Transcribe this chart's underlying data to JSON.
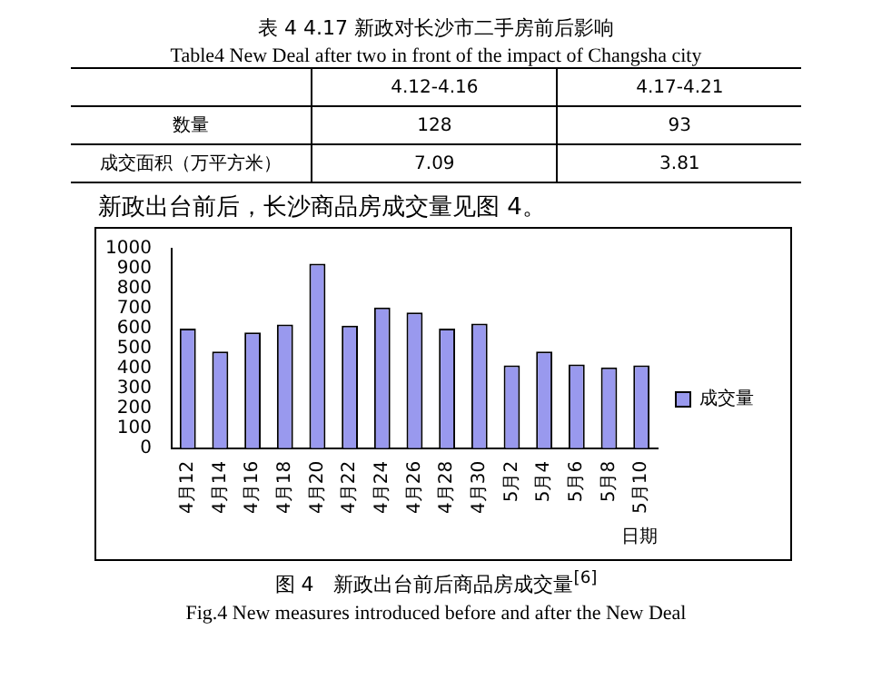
{
  "chart_data": [
    {
      "type": "other",
      "title": "表 4 4.17 新政对长沙市二手房前后影响",
      "subtitle": "Table4 New Deal after two in front of the impact of Changsha city",
      "annotations": [
        "4.12-4.16",
        "4.17-4.21",
        "数量",
        "128",
        "93",
        "成交面积（万平方米）",
        "7.09",
        "3.81",
        "新政出台前后，长沙商品房成交量见图 4。"
      ]
    },
    {
      "type": "bar",
      "title": "图 4　新政出台前后商品房成交量$^{[6]}$",
      "xlabel": "日期",
      "annotations": [
        "Fig.4 New measures introduced before and after the New Deal"
      ],
      "categories": [
        "4月12",
        "4月14",
        "4月16",
        "4月18",
        "4月20",
        "4月22",
        "4月24",
        "4月26",
        "4月28",
        "4月30",
        "5月2",
        "5月4",
        "5月6",
        "5月8",
        "5月10"
      ],
      "series": [
        {
          "name": "成交量",
          "color": "#9999ee",
          "values": [
            600,
            485,
            580,
            620,
            925,
            615,
            705,
            680,
            600,
            625,
            415,
            485,
            420,
            405,
            415
          ]
        }
      ],
      "ylim": [
        0,
        1000
      ],
      "yticks": [
        0,
        100,
        200,
        300,
        400,
        500,
        600,
        700,
        800,
        900,
        1000
      ],
      "grid": false,
      "legend": "right"
    }
  ]
}
